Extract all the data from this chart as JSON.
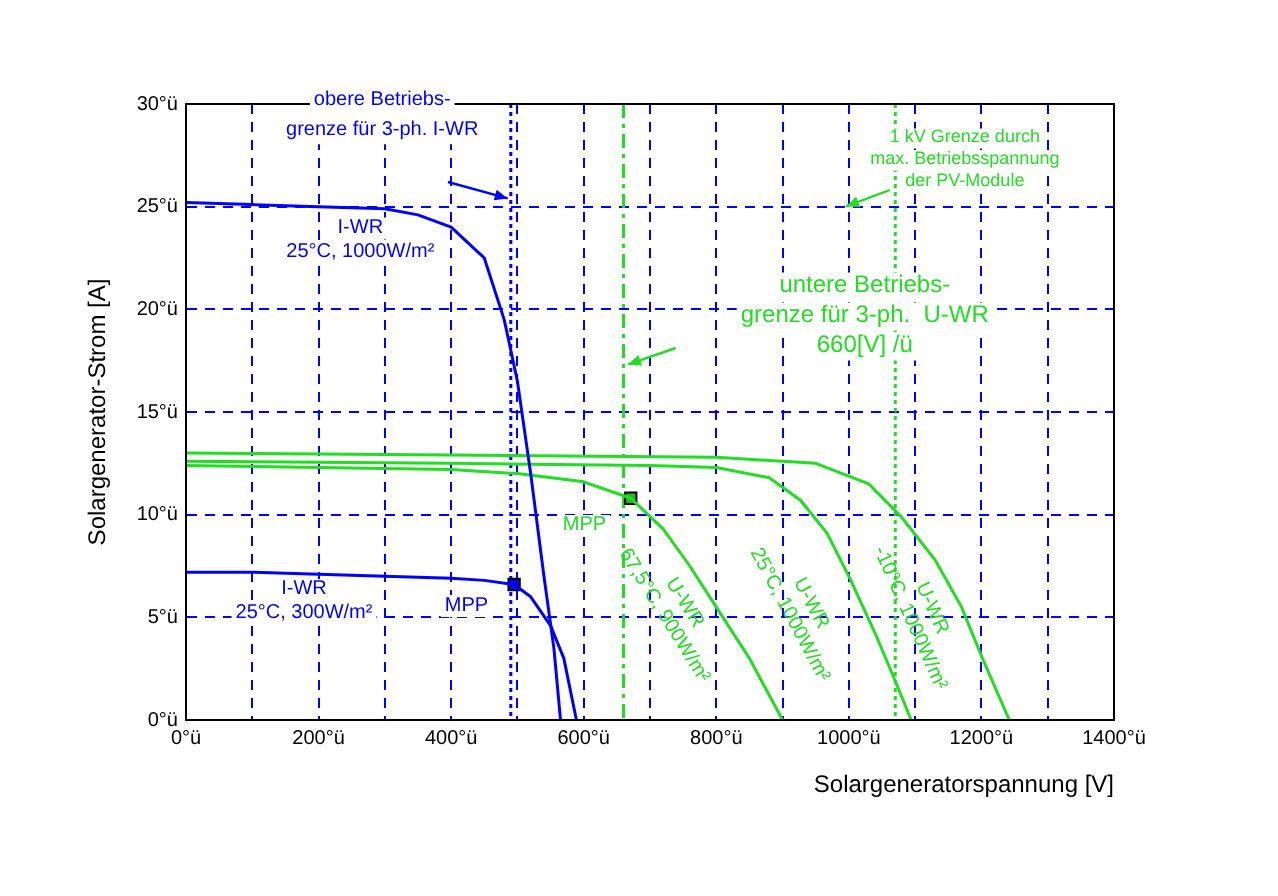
{
  "chart_data": {
    "type": "line",
    "xlabel": "Solargeneratorspannung [V]",
    "ylabel": "Solargenerator-Strom [A]",
    "xlim": [
      0,
      1400
    ],
    "ylim": [
      0,
      30
    ],
    "xticks": [
      {
        "value": 0,
        "label": "0°ü"
      },
      {
        "value": 100,
        "label": null
      },
      {
        "value": 200,
        "label": "200°ü"
      },
      {
        "value": 300,
        "label": null
      },
      {
        "value": 400,
        "label": "400°ü"
      },
      {
        "value": 500,
        "label": null
      },
      {
        "value": 600,
        "label": "600°ü"
      },
      {
        "value": 700,
        "label": null
      },
      {
        "value": 800,
        "label": "800°ü"
      },
      {
        "value": 900,
        "label": null
      },
      {
        "value": 1000,
        "label": "1000°ü"
      },
      {
        "value": 1100,
        "label": null
      },
      {
        "value": 1200,
        "label": "1200°ü"
      },
      {
        "value": 1300,
        "label": null
      },
      {
        "value": 1400,
        "label": "1400°ü"
      }
    ],
    "yticks": [
      {
        "value": 0,
        "label": "0°ü"
      },
      {
        "value": 5,
        "label": "5°ü"
      },
      {
        "value": 10,
        "label": "10°ü"
      },
      {
        "value": 15,
        "label": "15°ü"
      },
      {
        "value": 20,
        "label": "20°ü"
      },
      {
        "value": 25,
        "label": "25°ü"
      },
      {
        "value": 30,
        "label": "30°ü"
      }
    ],
    "grid": true,
    "legend": false,
    "marker": "none",
    "line_style": "solid",
    "series": [
      {
        "color": "#0000ff",
        "x": [
          0,
          100,
          200,
          300,
          350,
          400,
          450,
          480,
          500,
          520,
          540,
          555,
          565
        ],
        "values": [
          25.2,
          25.1,
          25.0,
          24.9,
          24.6,
          24.0,
          22.5,
          19.5,
          16.5,
          12.0,
          7.0,
          3.5,
          0
        ]
      },
      {
        "color": "#0000ff",
        "x": [
          0,
          100,
          200,
          300,
          400,
          450,
          495,
          520,
          550,
          570,
          589
        ],
        "values": [
          7.2,
          7.2,
          7.1,
          7.0,
          6.9,
          6.8,
          6.6,
          6.0,
          4.6,
          3.0,
          0
        ]
      },
      {
        "color": "#22dd22",
        "x": [
          0,
          200,
          400,
          500,
          600,
          671,
          720,
          760,
          800,
          850,
          900
        ],
        "values": [
          12.4,
          12.3,
          12.2,
          12.0,
          11.6,
          10.8,
          9.3,
          7.5,
          5.5,
          3.0,
          0
        ]
      },
      {
        "color": "#22dd22",
        "x": [
          0,
          400,
          700,
          800,
          880,
          927,
          967,
          1003,
          1040,
          1070,
          1094
        ],
        "values": [
          12.6,
          12.5,
          12.4,
          12.3,
          11.8,
          10.7,
          9.1,
          6.8,
          4.2,
          1.9,
          0
        ]
      },
      {
        "color": "#22dd22",
        "x": [
          0,
          400,
          800,
          950,
          1030,
          1079,
          1130,
          1170,
          1199,
          1242
        ],
        "values": [
          13.0,
          12.9,
          12.8,
          12.5,
          11.5,
          9.9,
          7.8,
          5.5,
          3.2,
          0
        ]
      },
      {
        "type": "scatter",
        "marker": "square",
        "color": "#0000ff",
        "x": [
          495
        ],
        "values": [
          6.6
        ]
      },
      {
        "type": "scatter",
        "marker": "square",
        "color": "#22bb22",
        "x": [
          671
        ],
        "values": [
          10.8
        ]
      }
    ],
    "ref_lines": [
      {
        "axis": "x",
        "value": 490,
        "color": "#0000ff",
        "line_style": "dotted"
      },
      {
        "axis": "x",
        "value": 660,
        "color": "#22dd22",
        "line_style": "dashed"
      },
      {
        "axis": "x",
        "value": 1070,
        "color": "#22dd22",
        "line_style": "dotted"
      }
    ],
    "annotations": [
      "obere Betriebs-\ngrenze für 3-ph. I-WR",
      "I-WR\n25°C, 1000W/m²",
      "I-WR\n25°C, 300W/m²",
      "MPP",
      "MPP",
      "untere Betriebs-\ngrenze für 3-ph.  U-WR\n660[V] /ü",
      "1 kV Grenze durch\nmax. Betriebsspannung\nder PV-Module",
      "U-WR\n67,5°C, 900W/m²",
      "U-WR\n25°C, 1000W/m²",
      "U-WR\n-10°C, 1000W/m²"
    ]
  }
}
